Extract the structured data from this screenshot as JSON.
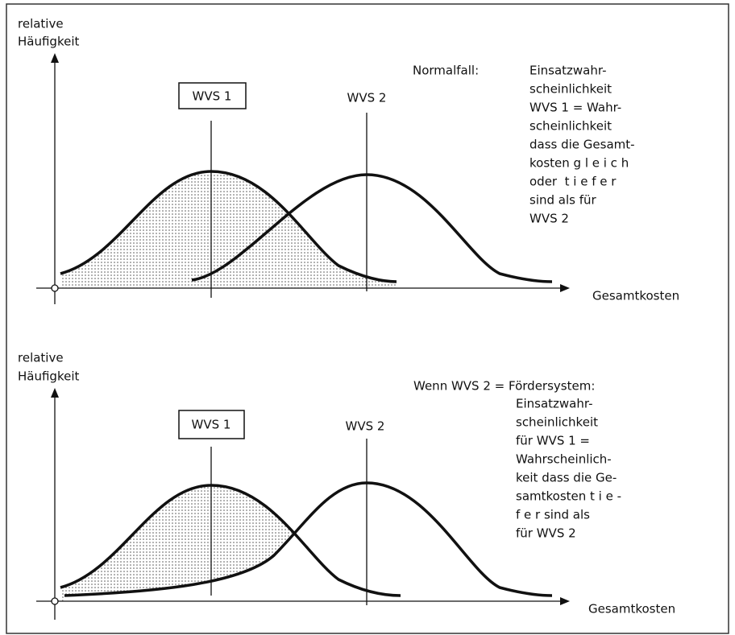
{
  "panels": [
    {
      "y_label": [
        "relative",
        "Häufigkeit"
      ],
      "x_label": "Gesamtkosten",
      "option_1": "WVS 1",
      "option_2": "WVS 2",
      "heading": "Normalfall:",
      "note": [
        "Einsatzwahr-",
        "scheinlichkeit",
        "WVS 1 = Wahr-",
        "scheinlichkeit",
        "dass die Gesamt-",
        "kosten g l e i c h",
        "oder  t i e f e r",
        "sind als für",
        "WVS 2"
      ]
    },
    {
      "y_label": [
        "relative",
        "Häufigkeit"
      ],
      "x_label": "Gesamtkosten",
      "option_1": "WVS 1",
      "option_2": "WVS 2",
      "heading": "Wenn WVS 2 = Fördersystem:",
      "note": [
        "Einsatzwahr-",
        "scheinlichkeit",
        "für WVS 1 =",
        "Wahrscheinlich-",
        "keit dass die Ge-",
        "samtkosten t i e -",
        "f e r sind als",
        "für WVS 2"
      ]
    }
  ]
}
